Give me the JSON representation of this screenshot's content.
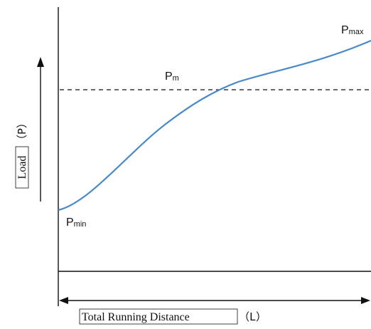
{
  "labels": {
    "p_max": "P",
    "p_max_sub": "max",
    "p_m": "P",
    "p_m_sub": "m",
    "p_min": "P",
    "p_min_sub": "min",
    "y_axis_word": "Load",
    "y_axis_symbol": "（P）",
    "x_axis_word": "Total Running Distance",
    "x_axis_symbol": "（L）"
  },
  "colors": {
    "curve": "#4a8ac9",
    "lines": "#111111"
  }
}
